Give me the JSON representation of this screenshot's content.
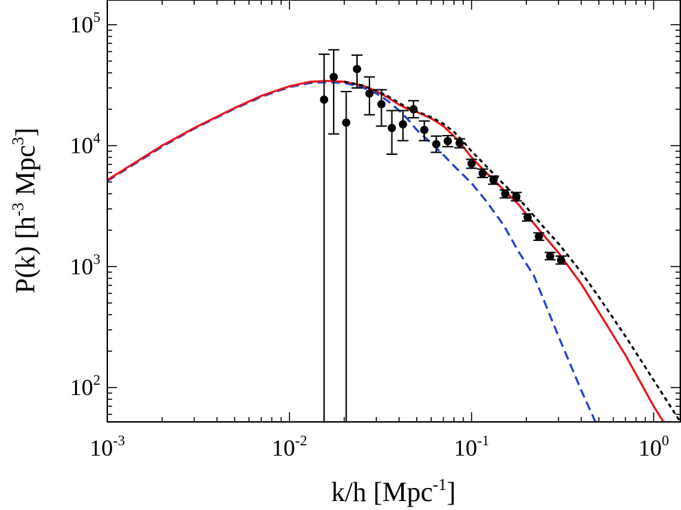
{
  "chart_data": {
    "type": "line",
    "title": "",
    "xlabel": {
      "base": "k/h [Mpc",
      "sup": "-1",
      "tail": "]"
    },
    "ylabel": {
      "pre": "P(k) [h",
      "sup1": "-3",
      "mid": " Mpc",
      "sup2": "3",
      "tail": "]"
    },
    "xscale": "log",
    "yscale": "log",
    "xlim": [
      0.001,
      1.4
    ],
    "ylim": [
      52,
      160000
    ],
    "xticks": [
      {
        "value": 0.001,
        "base": "10",
        "exp": "-3"
      },
      {
        "value": 0.01,
        "base": "10",
        "exp": "-2"
      },
      {
        "value": 0.1,
        "base": "10",
        "exp": "-1"
      },
      {
        "value": 1,
        "base": "10",
        "exp": "0"
      }
    ],
    "yticks": [
      {
        "value": 100,
        "base": "10",
        "exp": "2"
      },
      {
        "value": 1000,
        "base": "10",
        "exp": "3"
      },
      {
        "value": 10000,
        "base": "10",
        "exp": "4"
      },
      {
        "value": 100000,
        "base": "10",
        "exp": "5"
      }
    ],
    "grid": false,
    "legend": "none",
    "series": [
      {
        "style": "dashed-blue",
        "color": "#1f3fd6",
        "x": [
          0.001,
          0.002,
          0.003,
          0.005,
          0.007,
          0.01,
          0.013,
          0.016,
          0.02,
          0.025,
          0.03,
          0.035,
          0.04,
          0.045,
          0.05,
          0.06,
          0.07,
          0.08,
          0.1,
          0.12,
          0.15,
          0.18,
          0.22,
          0.3,
          0.4,
          0.5
        ],
        "y": [
          5100,
          9800,
          13800,
          20200,
          25300,
          30500,
          33000,
          33500,
          33000,
          30500,
          27000,
          23200,
          19500,
          16300,
          13500,
          10500,
          8400,
          6800,
          4900,
          3500,
          2200,
          1350,
          840,
          265,
          95,
          45
        ]
      },
      {
        "style": "solid-red",
        "color": "#e8141e",
        "x": [
          0.001,
          0.002,
          0.003,
          0.005,
          0.007,
          0.01,
          0.013,
          0.016,
          0.02,
          0.025,
          0.03,
          0.035,
          0.04,
          0.045,
          0.05,
          0.06,
          0.07,
          0.08,
          0.09,
          0.1,
          0.12,
          0.15,
          0.18,
          0.2,
          0.25,
          0.3,
          0.4,
          0.5,
          0.7,
          1.0,
          1.2
        ],
        "y": [
          5200,
          10000,
          14000,
          20500,
          25800,
          31000,
          33800,
          34300,
          33800,
          31500,
          28200,
          24800,
          21800,
          20000,
          19000,
          16800,
          14500,
          12000,
          9800,
          8000,
          6000,
          4300,
          3300,
          2700,
          1800,
          1300,
          720,
          420,
          185,
          70,
          45
        ]
      },
      {
        "style": "dotted-black",
        "color": "#000000",
        "x": [
          0.02,
          0.025,
          0.03,
          0.035,
          0.04,
          0.045,
          0.05,
          0.06,
          0.07,
          0.08,
          0.09,
          0.1,
          0.12,
          0.15,
          0.18,
          0.2,
          0.25,
          0.3,
          0.4,
          0.5,
          0.7,
          1.0,
          1.4
        ],
        "y": [
          33800,
          31500,
          28500,
          25500,
          22500,
          20500,
          19200,
          17200,
          15200,
          13000,
          10800,
          9000,
          6800,
          4800,
          3700,
          3100,
          2100,
          1550,
          900,
          560,
          265,
          115,
          52
        ]
      }
    ],
    "points": [
      {
        "x": 0.0155,
        "y": 24000,
        "ylo": 10,
        "yhi": 57000
      },
      {
        "x": 0.0175,
        "y": 37000,
        "ylo": 12500,
        "yhi": 62000
      },
      {
        "x": 0.0205,
        "y": 15500,
        "ylo": 10,
        "yhi": 28000
      },
      {
        "x": 0.0235,
        "y": 43000,
        "ylo": 30000,
        "yhi": 56000
      },
      {
        "x": 0.0275,
        "y": 27000,
        "ylo": 18000,
        "yhi": 37000
      },
      {
        "x": 0.032,
        "y": 22000,
        "ylo": 14500,
        "yhi": 29000
      },
      {
        "x": 0.0365,
        "y": 14000,
        "ylo": 8500,
        "yhi": 19500
      },
      {
        "x": 0.042,
        "y": 15000,
        "ylo": 11000,
        "yhi": 19500
      },
      {
        "x": 0.048,
        "y": 20000,
        "ylo": 17000,
        "yhi": 23500
      },
      {
        "x": 0.055,
        "y": 13500,
        "ylo": 11000,
        "yhi": 16000
      },
      {
        "x": 0.064,
        "y": 10300,
        "ylo": 8800,
        "yhi": 12000
      },
      {
        "x": 0.074,
        "y": 10900,
        "ylo": 9800,
        "yhi": 12100
      },
      {
        "x": 0.086,
        "y": 10500,
        "ylo": 9600,
        "yhi": 11400
      },
      {
        "x": 0.1,
        "y": 7100,
        "ylo": 6500,
        "yhi": 7700
      },
      {
        "x": 0.115,
        "y": 5900,
        "ylo": 5450,
        "yhi": 6400
      },
      {
        "x": 0.132,
        "y": 5200,
        "ylo": 4800,
        "yhi": 5600
      },
      {
        "x": 0.153,
        "y": 4000,
        "ylo": 3700,
        "yhi": 4300
      },
      {
        "x": 0.176,
        "y": 3800,
        "ylo": 3500,
        "yhi": 4100
      },
      {
        "x": 0.203,
        "y": 2550,
        "ylo": 2380,
        "yhi": 2730
      },
      {
        "x": 0.234,
        "y": 1770,
        "ylo": 1650,
        "yhi": 1900
      },
      {
        "x": 0.27,
        "y": 1220,
        "ylo": 1140,
        "yhi": 1310
      },
      {
        "x": 0.31,
        "y": 1130,
        "ylo": 1050,
        "yhi": 1220
      }
    ]
  }
}
